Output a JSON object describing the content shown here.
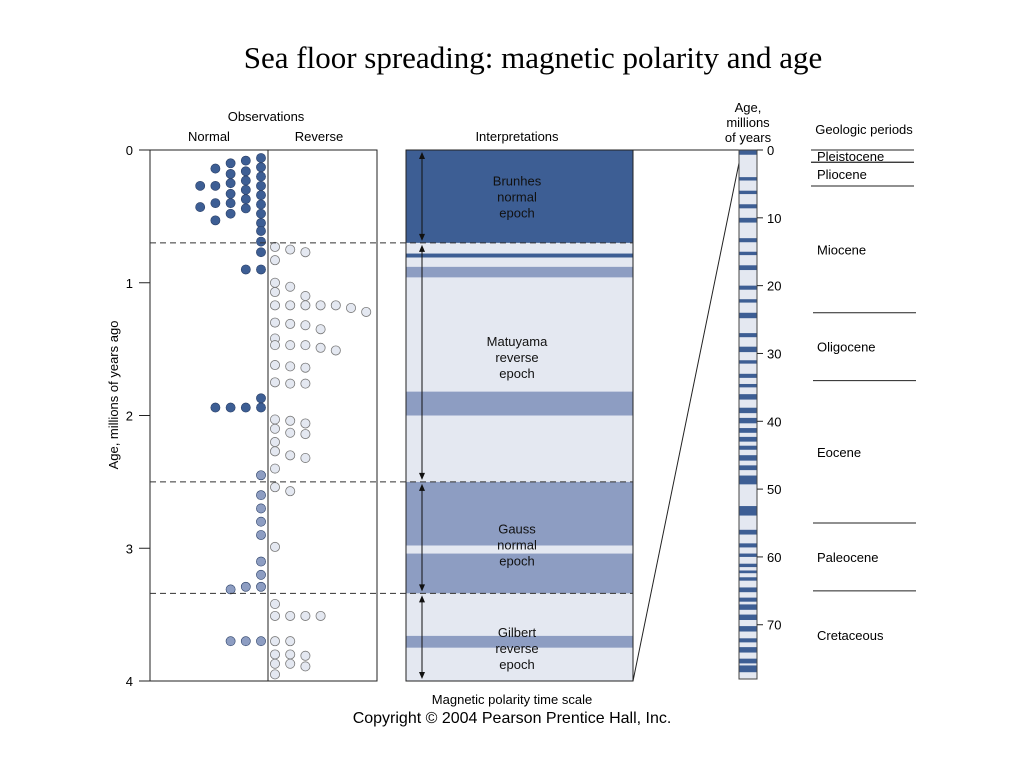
{
  "title": "Sea floor spreading: magnetic polarity and age",
  "copyright": "Copyright © 2004 Pearson Prentice Hall, Inc.",
  "colors": {
    "normal": "#3d5e94",
    "normal_light": "#8d9dc2",
    "reverse": "#e4e8f1",
    "dot_reverse_stroke": "#7a7a7a"
  },
  "observations": {
    "heading": "Observations",
    "col_normal": "Normal",
    "col_reverse": "Reverse",
    "y_axis_label": "Age, millions of years ago",
    "y_ticks": [
      "0",
      "1",
      "2",
      "3",
      "4"
    ],
    "normal_dots": [
      [
        0.06,
        1
      ],
      [
        0.13,
        1
      ],
      [
        0.2,
        1
      ],
      [
        0.27,
        1
      ],
      [
        0.34,
        1
      ],
      [
        0.41,
        1
      ],
      [
        0.48,
        1
      ],
      [
        0.55,
        1
      ],
      [
        0.61,
        1
      ],
      [
        0.69,
        1
      ],
      [
        0.77,
        1
      ],
      [
        0.08,
        2
      ],
      [
        0.16,
        2
      ],
      [
        0.23,
        2
      ],
      [
        0.3,
        2
      ],
      [
        0.37,
        2
      ],
      [
        0.44,
        2
      ],
      [
        0.1,
        3
      ],
      [
        0.18,
        3
      ],
      [
        0.25,
        3
      ],
      [
        0.33,
        3
      ],
      [
        0.4,
        3
      ],
      [
        0.48,
        3
      ],
      [
        0.14,
        4
      ],
      [
        0.27,
        4
      ],
      [
        0.4,
        4
      ],
      [
        0.53,
        4
      ],
      [
        0.27,
        5
      ],
      [
        0.43,
        5
      ],
      [
        0.9,
        1
      ],
      [
        0.9,
        2
      ],
      [
        1.87,
        1
      ],
      [
        1.94,
        1
      ],
      [
        1.94,
        2
      ],
      [
        1.94,
        3
      ],
      [
        1.94,
        4
      ],
      [
        2.45,
        1
      ],
      [
        2.6,
        1
      ],
      [
        2.7,
        1
      ],
      [
        2.8,
        1
      ],
      [
        2.9,
        1
      ],
      [
        3.1,
        1
      ],
      [
        3.2,
        1
      ],
      [
        3.29,
        1
      ],
      [
        3.29,
        2
      ],
      [
        3.31,
        3
      ],
      [
        3.7,
        1
      ],
      [
        3.7,
        2
      ],
      [
        3.7,
        3
      ]
    ],
    "reverse_dots": [
      [
        0.73,
        1
      ],
      [
        0.75,
        2
      ],
      [
        0.77,
        3
      ],
      [
        0.83,
        1
      ],
      [
        1.0,
        1
      ],
      [
        1.03,
        2
      ],
      [
        1.07,
        1
      ],
      [
        1.1,
        3
      ],
      [
        1.17,
        1
      ],
      [
        1.17,
        2
      ],
      [
        1.17,
        3
      ],
      [
        1.17,
        4
      ],
      [
        1.17,
        5
      ],
      [
        1.19,
        6
      ],
      [
        1.22,
        7
      ],
      [
        1.3,
        1
      ],
      [
        1.31,
        2
      ],
      [
        1.32,
        3
      ],
      [
        1.35,
        4
      ],
      [
        1.42,
        1
      ],
      [
        1.47,
        1
      ],
      [
        1.47,
        2
      ],
      [
        1.47,
        3
      ],
      [
        1.49,
        4
      ],
      [
        1.51,
        5
      ],
      [
        1.62,
        1
      ],
      [
        1.63,
        2
      ],
      [
        1.64,
        3
      ],
      [
        1.75,
        1
      ],
      [
        1.76,
        2
      ],
      [
        1.76,
        3
      ],
      [
        2.03,
        1
      ],
      [
        2.04,
        2
      ],
      [
        2.06,
        3
      ],
      [
        2.1,
        1
      ],
      [
        2.13,
        2
      ],
      [
        2.14,
        3
      ],
      [
        2.2,
        1
      ],
      [
        2.27,
        1
      ],
      [
        2.3,
        2
      ],
      [
        2.32,
        3
      ],
      [
        2.4,
        1
      ],
      [
        2.54,
        1
      ],
      [
        2.57,
        2
      ],
      [
        2.99,
        1
      ],
      [
        3.42,
        1
      ],
      [
        3.51,
        1
      ],
      [
        3.51,
        2
      ],
      [
        3.51,
        3
      ],
      [
        3.51,
        4
      ],
      [
        3.7,
        1
      ],
      [
        3.7,
        2
      ],
      [
        3.8,
        1
      ],
      [
        3.8,
        2
      ],
      [
        3.81,
        3
      ],
      [
        3.87,
        1
      ],
      [
        3.87,
        2
      ],
      [
        3.89,
        3
      ],
      [
        3.95,
        1
      ]
    ]
  },
  "interpretations": {
    "heading": "Interpretations",
    "bands": [
      {
        "from": 0,
        "to": 0.7,
        "type": "normal"
      },
      {
        "from": 0.7,
        "to": 0.78,
        "type": "reverse"
      },
      {
        "from": 0.78,
        "to": 0.81,
        "type": "normal"
      },
      {
        "from": 0.81,
        "to": 0.88,
        "type": "reverse"
      },
      {
        "from": 0.88,
        "to": 0.96,
        "type": "normal_light"
      },
      {
        "from": 0.96,
        "to": 1.82,
        "type": "reverse"
      },
      {
        "from": 1.82,
        "to": 2.0,
        "type": "normal_light"
      },
      {
        "from": 2.0,
        "to": 2.5,
        "type": "reverse"
      },
      {
        "from": 2.5,
        "to": 2.98,
        "type": "normal_light"
      },
      {
        "from": 2.98,
        "to": 3.04,
        "type": "reverse"
      },
      {
        "from": 3.04,
        "to": 3.34,
        "type": "normal_light"
      },
      {
        "from": 3.34,
        "to": 3.66,
        "type": "reverse"
      },
      {
        "from": 3.66,
        "to": 3.75,
        "type": "normal_light"
      },
      {
        "from": 3.75,
        "to": 4.0,
        "type": "reverse"
      }
    ],
    "boundaries": [
      0.7,
      2.5,
      3.34
    ],
    "epochs": [
      {
        "lines": [
          "Brunhes",
          "normal",
          "epoch"
        ],
        "age": 0.35,
        "dark": true
      },
      {
        "lines": [
          "Matuyama",
          "reverse",
          "epoch"
        ],
        "age": 1.56,
        "dark": false
      },
      {
        "lines": [
          "Gauss",
          "normal",
          "epoch"
        ],
        "age": 2.97,
        "dark": false
      },
      {
        "lines": [
          "Gilbert",
          "reverse",
          "epoch"
        ],
        "age": 3.75,
        "dark": false
      }
    ]
  },
  "time_scale": {
    "label": "Magnetic polarity time scale",
    "heading_lines": [
      "Age,",
      "millions",
      "of years"
    ],
    "max_age": 78,
    "ticks": [
      "0",
      "10",
      "20",
      "30",
      "40",
      "50",
      "60",
      "70"
    ],
    "normal_bands": [
      [
        0,
        0.7
      ],
      [
        4,
        4.5
      ],
      [
        6,
        6.5
      ],
      [
        8,
        8.6
      ],
      [
        10,
        10.7
      ],
      [
        13,
        13.6
      ],
      [
        15,
        15.5
      ],
      [
        17,
        17.7
      ],
      [
        20,
        20.6
      ],
      [
        22,
        22.5
      ],
      [
        24,
        24.8
      ],
      [
        27,
        27.6
      ],
      [
        29,
        29.8
      ],
      [
        31,
        31.5
      ],
      [
        33,
        33.6
      ],
      [
        34.5,
        35
      ],
      [
        36,
        36.8
      ],
      [
        38,
        38.8
      ],
      [
        39.5,
        40.3
      ],
      [
        41,
        41.7
      ],
      [
        42.3,
        43
      ],
      [
        43.6,
        44.2
      ],
      [
        45,
        45.8
      ],
      [
        46.5,
        47.2
      ],
      [
        48,
        49.3
      ],
      [
        52.5,
        53.9
      ],
      [
        56,
        56.7
      ],
      [
        58,
        58.6
      ],
      [
        59.5,
        60
      ],
      [
        61,
        61.5
      ],
      [
        62,
        62.4
      ],
      [
        63,
        63.5
      ],
      [
        64.5,
        65.2
      ],
      [
        66,
        66.6
      ],
      [
        67,
        67.8
      ],
      [
        68.5,
        69.3
      ],
      [
        70.2,
        71
      ],
      [
        72,
        72.6
      ],
      [
        73.3,
        74.1
      ],
      [
        75,
        75.7
      ],
      [
        76,
        77
      ]
    ]
  },
  "geologic_periods": {
    "heading": "Geologic periods",
    "periods": [
      {
        "name": "Pleistocene",
        "from": 0,
        "to": 1.8,
        "boxed": true
      },
      {
        "name": "Pliocene",
        "from": 1.8,
        "to": 5.3,
        "boxed": true
      },
      {
        "name": "Miocene",
        "from": 5.3,
        "to": 24,
        "boxed": false
      },
      {
        "name": "Oligocene",
        "from": 24,
        "to": 34,
        "boxed": false
      },
      {
        "name": "Eocene",
        "from": 34,
        "to": 55,
        "boxed": false
      },
      {
        "name": "Paleocene",
        "from": 55,
        "to": 65,
        "boxed": false
      },
      {
        "name": "Cretaceous",
        "from": 65,
        "to": 78,
        "boxed": false
      }
    ]
  }
}
